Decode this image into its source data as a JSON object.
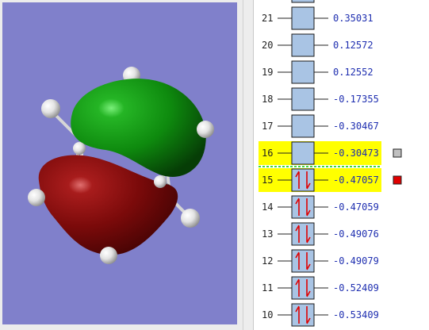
{
  "colors": {
    "viewer_background": "#8080cb",
    "highlight": "#ffff00",
    "box_fill": "#a9c4e4",
    "energy_text": "#1f2fb0",
    "arrow": "#e00000",
    "homo_marker": "#e00000",
    "lumo_marker": "#c0c0c0",
    "gap_line": "#00cc00",
    "lobe_positive": "#0e8a0e",
    "lobe_negative": "#7a0a0a"
  },
  "molecule_viewer": {
    "molecule": "ethylene dimer with orbital isosurface",
    "hydrogen_atoms": 8
  },
  "orbitals": [
    {
      "index": "",
      "energy": "",
      "occupied": false,
      "highlighted": false,
      "marker": ""
    },
    {
      "index": "21",
      "energy": "0.35031",
      "occupied": false,
      "highlighted": false,
      "marker": ""
    },
    {
      "index": "20",
      "energy": "0.12572",
      "occupied": false,
      "highlighted": false,
      "marker": ""
    },
    {
      "index": "19",
      "energy": "0.12552",
      "occupied": false,
      "highlighted": false,
      "marker": ""
    },
    {
      "index": "18",
      "energy": "-0.17355",
      "occupied": false,
      "highlighted": false,
      "marker": ""
    },
    {
      "index": "17",
      "energy": "-0.30467",
      "occupied": false,
      "highlighted": false,
      "marker": ""
    },
    {
      "index": "16",
      "energy": "-0.30473",
      "occupied": false,
      "highlighted": true,
      "marker": "lumo"
    },
    {
      "index": "15",
      "energy": "-0.47057",
      "occupied": true,
      "highlighted": true,
      "marker": "homo"
    },
    {
      "index": "14",
      "energy": "-0.47059",
      "occupied": true,
      "highlighted": false,
      "marker": ""
    },
    {
      "index": "13",
      "energy": "-0.49076",
      "occupied": true,
      "highlighted": false,
      "marker": ""
    },
    {
      "index": "12",
      "energy": "-0.49079",
      "occupied": true,
      "highlighted": false,
      "marker": ""
    },
    {
      "index": "11",
      "energy": "-0.52409",
      "occupied": true,
      "highlighted": false,
      "marker": ""
    },
    {
      "index": "10",
      "energy": "-0.53409",
      "occupied": true,
      "highlighted": false,
      "marker": ""
    }
  ]
}
